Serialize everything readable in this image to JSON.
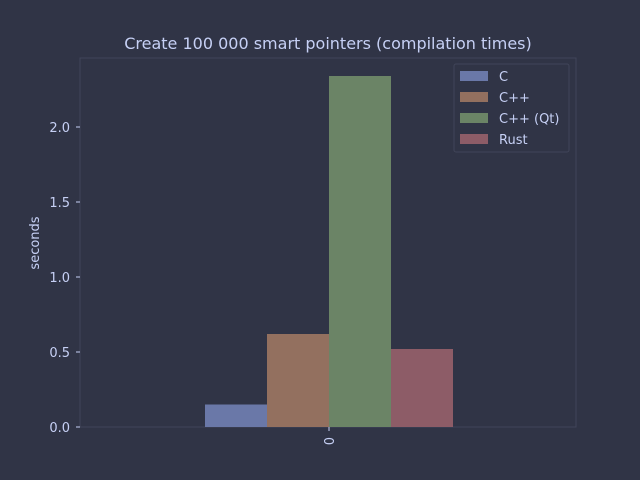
{
  "chart_data": {
    "type": "bar",
    "title": "Create 100 000 smart pointers (compilation times)",
    "xlabel": "",
    "ylabel": "seconds",
    "categories": [
      "0"
    ],
    "ylim": [
      0,
      2.46
    ],
    "yticks": [
      "0.0",
      "0.5",
      "1.0",
      "1.5",
      "2.0"
    ],
    "yticks_values": [
      0,
      0.5,
      1.0,
      1.5,
      2.0
    ],
    "grid": false,
    "legend_position": "top-right",
    "series": [
      {
        "name": "C",
        "values": [
          0.15
        ],
        "color": "#6a78a8"
      },
      {
        "name": "C++",
        "values": [
          0.62
        ],
        "color": "#93705f"
      },
      {
        "name": "C++ (Qt)",
        "values": [
          2.34
        ],
        "color": "#6b8466"
      },
      {
        "name": "Rust",
        "values": [
          0.52
        ],
        "color": "#8d5c67"
      }
    ]
  },
  "colors": {
    "background": "#303446",
    "axes_edge": "#414559",
    "legend_bg": "#303446",
    "legend_edge": "#414559",
    "text": "#c6d0f5"
  }
}
